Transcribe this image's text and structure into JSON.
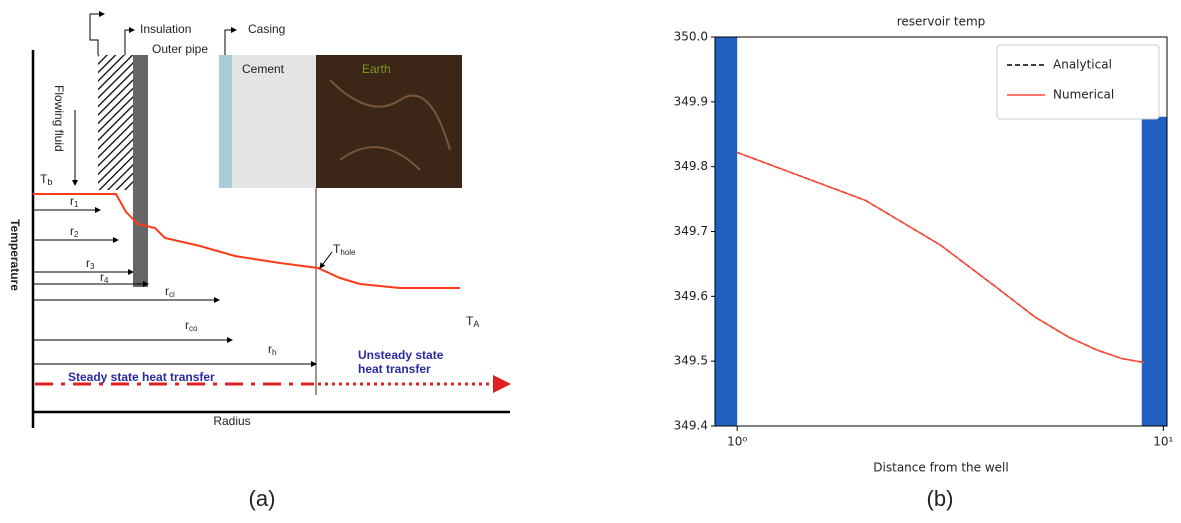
{
  "diagram": {
    "insulation": "Insulation",
    "outer_pipe": "Outer pipe",
    "casing": "Casing",
    "cement": "Cement",
    "earth": "Earth",
    "flowing_fluid": "Flowing fluid",
    "t_b": {
      "main": "T",
      "sub": "b"
    },
    "t_hole": {
      "main": "T",
      "sub": "hole"
    },
    "t_a": {
      "main": "T",
      "sub": "A"
    },
    "radii": [
      {
        "main": "r",
        "sub": "1"
      },
      {
        "main": "r",
        "sub": "2"
      },
      {
        "main": "r",
        "sub": "3"
      },
      {
        "main": "r",
        "sub": "4"
      },
      {
        "main": "r",
        "sub": "ci"
      },
      {
        "main": "r",
        "sub": "co"
      },
      {
        "main": "r",
        "sub": "h"
      }
    ],
    "y_axis": "Temperature",
    "x_axis": "Radius",
    "steady": "Steady state heat transfer",
    "unsteady": [
      "Unsteady state",
      "heat transfer"
    ]
  },
  "captions": [
    "(a)",
    "(b)"
  ],
  "chart_data": {
    "type": "line",
    "title": "reservoir temp",
    "x_label": "Distance from the well",
    "x_scale": "log",
    "xlim": [
      0.887,
      10.2
    ],
    "xticks": [
      {
        "value": 1,
        "label": "10⁰"
      },
      {
        "value": 10,
        "label": "10¹"
      }
    ],
    "ylim": [
      349.4,
      350
    ],
    "yticks": [
      349.4,
      349.5,
      349.6,
      349.7,
      349.8,
      349.9,
      {
        "value": 350,
        "label": "350.0"
      }
    ],
    "legend": "upper right",
    "x": [
      1,
      2,
      3,
      4,
      5,
      6,
      7,
      8,
      9
    ],
    "series": [
      {
        "name": "Analytical",
        "color": "#000000",
        "dash": true,
        "values": [
          349.822,
          349.748,
          349.679,
          349.617,
          349.568,
          349.537,
          349.517,
          349.504,
          349.498
        ]
      },
      {
        "name": "Numerical",
        "color": "#ff4b33",
        "dash": false,
        "values": [
          349.822,
          349.748,
          349.679,
          349.617,
          349.568,
          349.537,
          349.517,
          349.504,
          349.498
        ]
      }
    ],
    "bars": {
      "color": "#2060c0",
      "edges": [
        [
          0.887,
          1
        ],
        [
          8.9,
          10.2
        ]
      ],
      "values": [
        350,
        349.877
      ]
    }
  }
}
